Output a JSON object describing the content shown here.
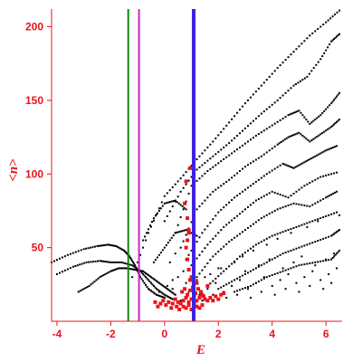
{
  "chart_data": {
    "type": "scatter",
    "title": "",
    "xlabel": "E",
    "ylabel": "<n>",
    "xlim": [
      -4.2,
      6.6
    ],
    "ylim": [
      0,
      212
    ],
    "xticks": [
      -4,
      -2,
      0,
      2,
      4,
      6
    ],
    "yticks": [
      50,
      100,
      150,
      200
    ],
    "grid": false,
    "legend": "none",
    "vertical_lines": [
      {
        "x": -1.35,
        "color": "#0a8a0a"
      },
      {
        "x": -0.95,
        "color": "#d21fd2"
      },
      {
        "x": 1.05,
        "color": "#3a20e0"
      }
    ],
    "series": [
      {
        "color": "#000000",
        "marker": "dot",
        "branches": [
          {
            "x": [
              -1.2,
              -0.6,
              0.0,
              0.6,
              1.2,
              1.8,
              2.4,
              3.0,
              3.6,
              4.2,
              4.8,
              5.4,
              6.0,
              6.5
            ],
            "y": [
              30,
              60,
              85,
              97,
              110,
              122,
              135,
              148,
              160,
              172,
              183,
              194,
              203,
              211
            ]
          },
          {
            "x": [
              0.0,
              0.6,
              1.2,
              1.8,
              2.4,
              3.0,
              3.6,
              4.2,
              4.8,
              5.3,
              5.8,
              6.2,
              6.5
            ],
            "y": [
              68,
              88,
              103,
              112,
              121,
              131,
              141,
              150,
              160,
              166,
              178,
              190,
              195
            ]
          },
          {
            "x": [
              0.4,
              1.0,
              1.6,
              2.2,
              2.8,
              3.4,
              4.0,
              4.6,
              5.0,
              5.4,
              5.8,
              6.2,
              6.5
            ],
            "y": [
              60,
              92,
              102,
              110,
              118,
              126,
              133,
              140,
              143,
              134,
              140,
              148,
              155
            ]
          },
          {
            "x": [
              0.6,
              1.2,
              1.8,
              2.4,
              3.0,
              3.6,
              4.2,
              4.6,
              5.0,
              5.4,
              5.8,
              6.2,
              6.5
            ],
            "y": [
              50,
              76,
              88,
              96,
              105,
              112,
              120,
              125,
              128,
              122,
              127,
              132,
              137
            ]
          },
          {
            "x": [
              0.8,
              1.4,
              2.0,
              2.6,
              3.2,
              3.8,
              4.4,
              4.8,
              5.2,
              5.6,
              6.0,
              6.4
            ],
            "y": [
              42,
              60,
              74,
              84,
              92,
              100,
              107,
              104,
              108,
              112,
              116,
              119
            ]
          },
          {
            "x": [
              1.0,
              1.6,
              2.2,
              2.8,
              3.4,
              4.0,
              4.6,
              5.2,
              5.8,
              6.4
            ],
            "y": [
              38,
              52,
              64,
              73,
              82,
              88,
              84,
              92,
              98,
              101
            ]
          },
          {
            "x": [
              1.2,
              1.8,
              2.4,
              3.0,
              3.6,
              4.2,
              4.8,
              5.4,
              6.0,
              6.4
            ],
            "y": [
              30,
              44,
              54,
              62,
              70,
              76,
              80,
              78,
              84,
              88
            ]
          },
          {
            "x": [
              1.6,
              2.2,
              2.8,
              3.4,
              4.0,
              4.6,
              5.2,
              5.8,
              6.4
            ],
            "y": [
              24,
              34,
              44,
              52,
              58,
              62,
              66,
              70,
              74
            ]
          },
          {
            "x": [
              2.0,
              2.6,
              3.2,
              3.8,
              4.4,
              5.0,
              5.6,
              6.2,
              6.5
            ],
            "y": [
              22,
              28,
              34,
              40,
              46,
              50,
              54,
              58,
              62
            ]
          },
          {
            "x": [
              2.6,
              3.2,
              3.8,
              4.4,
              5.0,
              5.6,
              6.2,
              6.5
            ],
            "y": [
              20,
              24,
              30,
              34,
              38,
              40,
              42,
              48
            ]
          },
          {
            "x": [
              -4.2,
              -3.6,
              -3.0,
              -2.5,
              -2.1,
              -1.8,
              -1.5,
              -1.3,
              -1.1,
              -0.9,
              -0.6,
              -0.3,
              0.0
            ],
            "y": [
              40,
              45,
              49,
              51,
              52,
              51,
              48,
              44,
              38,
              30,
              22,
              18,
              16
            ]
          },
          {
            "x": [
              -4.0,
              -3.4,
              -2.9,
              -2.4,
              -2.0,
              -1.6,
              -1.2,
              -0.9,
              -0.6,
              -0.3,
              0.0,
              0.3
            ],
            "y": [
              32,
              37,
              40,
              41,
              40,
              40,
              38,
              34,
              28,
              22,
              18,
              15
            ]
          },
          {
            "x": [
              -3.2,
              -2.8,
              -2.4,
              -2.0,
              -1.7,
              -1.4,
              -1.1,
              -0.8,
              -0.5,
              -0.2,
              0.1,
              0.4
            ],
            "y": [
              20,
              24,
              30,
              34,
              36,
              36,
              35,
              34,
              30,
              26,
              22,
              18
            ]
          },
          {
            "x": [
              -0.8,
              -0.4,
              0.0,
              0.4,
              0.8
            ],
            "y": [
              55,
              70,
              80,
              82,
              76
            ]
          },
          {
            "x": [
              -0.4,
              0.0,
              0.4,
              0.8,
              1.2
            ],
            "y": [
              40,
              50,
              60,
              62,
              58
            ]
          }
        ],
        "scatter": {
          "x": [
            -0.2,
            0.1,
            0.3,
            0.5,
            0.7,
            0.2,
            0.4,
            0.9,
            1.3,
            1.6,
            1.9,
            2.2,
            2.5,
            2.8,
            3.1,
            3.4,
            3.7,
            4.0,
            4.3,
            4.6,
            4.9,
            5.2,
            5.5,
            5.8,
            6.1,
            6.4,
            1.5,
            2.0,
            2.6,
            3.0,
            3.5,
            3.9,
            4.4,
            4.8,
            5.1,
            5.6,
            6.0,
            6.3,
            0.6,
            1.1,
            1.4,
            1.8,
            2.3,
            2.7,
            3.2,
            3.6,
            4.1,
            4.5,
            5.0,
            5.4,
            5.9,
            6.2,
            0.3,
            0.8,
            1.2,
            1.7,
            2.1,
            2.9,
            3.3,
            3.8,
            4.2,
            4.7,
            5.3,
            5.7,
            6.5
          ],
          "y": [
            20,
            24,
            28,
            30,
            34,
            40,
            46,
            20,
            18,
            22,
            26,
            20,
            24,
            28,
            22,
            26,
            30,
            24,
            28,
            32,
            26,
            30,
            34,
            28,
            32,
            36,
            30,
            36,
            40,
            34,
            38,
            42,
            36,
            40,
            44,
            38,
            42,
            46,
            14,
            16,
            14,
            18,
            16,
            18,
            16,
            20,
            18,
            22,
            20,
            24,
            22,
            26,
            22,
            26,
            28,
            32,
            36,
            44,
            48,
            52,
            56,
            60,
            64,
            68,
            72
          ]
        }
      },
      {
        "color": "#e8141b",
        "marker": "square",
        "x": [
          0.6,
          0.7,
          0.8,
          0.9,
          1.0,
          1.1,
          1.2,
          1.3,
          1.4,
          1.5,
          1.6,
          0.65,
          0.75,
          0.85,
          0.95,
          1.05,
          1.15,
          1.25,
          1.35,
          1.45,
          0.7,
          0.8,
          0.9,
          1.0,
          1.1,
          1.2,
          1.3,
          1.4,
          0.5,
          0.55,
          0.45,
          0.4,
          0.3,
          0.25,
          0.15,
          0.05,
          -0.05,
          -0.15,
          -0.25,
          -0.35,
          1.7,
          1.8,
          1.9,
          2.0,
          2.1,
          2.2,
          0.95,
          0.9,
          0.85,
          0.8,
          0.9,
          0.85,
          0.75,
          0.8,
          0.95,
          0.9,
          0.85,
          1.0,
          1.2,
          1.6
        ],
        "y": [
          12,
          14,
          16,
          13,
          15,
          17,
          14,
          16,
          18,
          15,
          14,
          20,
          22,
          18,
          21,
          23,
          19,
          22,
          20,
          17,
          10,
          9,
          11,
          8,
          12,
          10,
          9,
          11,
          13,
          8,
          10,
          15,
          12,
          9,
          13,
          11,
          14,
          12,
          10,
          13,
          16,
          14,
          17,
          15,
          18,
          19,
          28,
          35,
          42,
          50,
          60,
          70,
          80,
          95,
          104,
          62,
          55,
          30,
          26,
          24
        ]
      }
    ]
  }
}
